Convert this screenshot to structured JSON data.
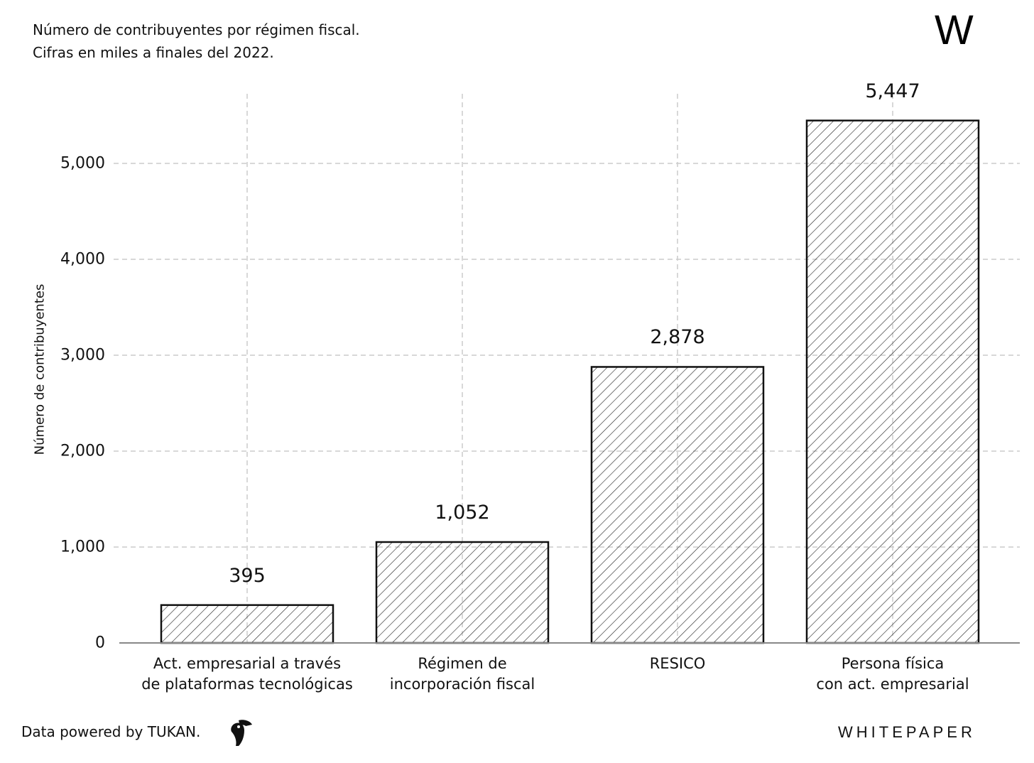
{
  "header": {
    "title_line1": "Número de contribuyentes por régimen fiscal.",
    "title_line2": "Cifras en miles a finales del 2022.",
    "logo": "W"
  },
  "footer": {
    "credit": "Data powered by TUKAN.",
    "brand": "WHITEPAPER",
    "credit_icon": "toucan-icon"
  },
  "chart_data": {
    "type": "bar",
    "title": "Número de contribuyentes por régimen fiscal.",
    "subtitle": "Cifras en miles a finales del 2022.",
    "ylabel": "Número de contribuyentes",
    "xlabel": "",
    "categories": [
      "Act. empresarial a través\nde plataformas tecnológicas",
      "Régimen de\nincorporación fiscal",
      "RESICO",
      "Persona física\ncon act. empresarial"
    ],
    "values": [
      395,
      1052,
      2878,
      5447
    ],
    "value_labels": [
      "395",
      "1,052",
      "2,878",
      "5,447"
    ],
    "yticks": [
      0,
      1000,
      2000,
      3000,
      4000,
      5000
    ],
    "ytick_labels": [
      "0",
      "1,000",
      "2,000",
      "3,000",
      "4,000",
      "5,000"
    ],
    "ylim": [
      0,
      5700
    ],
    "grid": true,
    "bar_fill": "hatched",
    "colors": {
      "bar_edge": "#111111",
      "hatch": "#222222",
      "grid": "#cccccc",
      "axis": "#888888"
    }
  }
}
